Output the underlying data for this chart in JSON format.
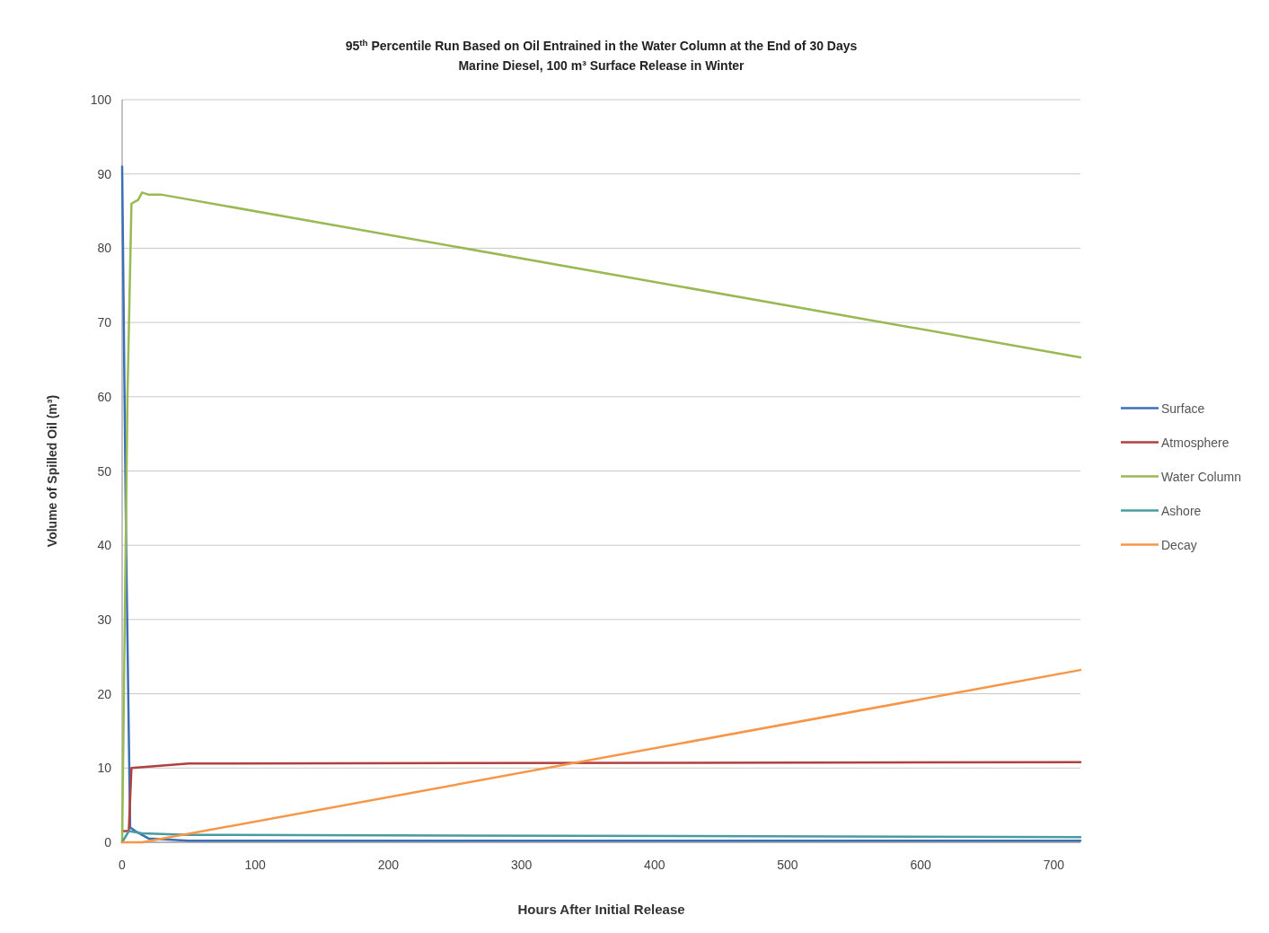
{
  "chart_data": {
    "type": "line",
    "title": "95$^{th}$ Percentile Run Based on Oil Entrained in the Water Column at the End of 30 Days",
    "subtitle": "Marine Diesel, 100 m³ Surface Release in Winter",
    "xlabel": "Hours After Initial Release",
    "ylabel": "Volume of Spilled Oil (m³)",
    "xlim": [
      0,
      720
    ],
    "xticks": [
      0,
      100,
      200,
      300,
      400,
      500,
      600,
      700
    ],
    "ylim": [
      0,
      100
    ],
    "yticks": [
      0,
      10,
      20,
      30,
      40,
      50,
      60,
      70,
      80,
      90,
      100
    ],
    "grid": "y",
    "legend": "right",
    "series": [
      {
        "name": "Surface",
        "color": "#3b6fb6",
        "x": [
          0,
          3,
          6,
          10,
          20,
          50,
          720
        ],
        "values": [
          91,
          40,
          2,
          1.5,
          0.5,
          0.2,
          0.2
        ]
      },
      {
        "name": "Atmosphere",
        "color": "#b0413e",
        "x": [
          0,
          5,
          7,
          50,
          720
        ],
        "values": [
          1.5,
          1.5,
          10,
          10.6,
          10.8
        ]
      },
      {
        "name": "Water Column",
        "color": "#98b954",
        "x": [
          0,
          4,
          7,
          12,
          15,
          20,
          30,
          720
        ],
        "values": [
          0,
          60,
          86,
          86.5,
          87.5,
          87.2,
          87.2,
          65.3
        ]
      },
      {
        "name": "Ashore",
        "color": "#4a9a9f",
        "x": [
          0,
          5,
          15,
          50,
          720
        ],
        "values": [
          0,
          1.5,
          1.2,
          1,
          0.7
        ]
      },
      {
        "name": "Decay",
        "color": "#f79646",
        "x": [
          0,
          15,
          720
        ],
        "values": [
          0,
          0,
          23.2
        ]
      }
    ]
  }
}
